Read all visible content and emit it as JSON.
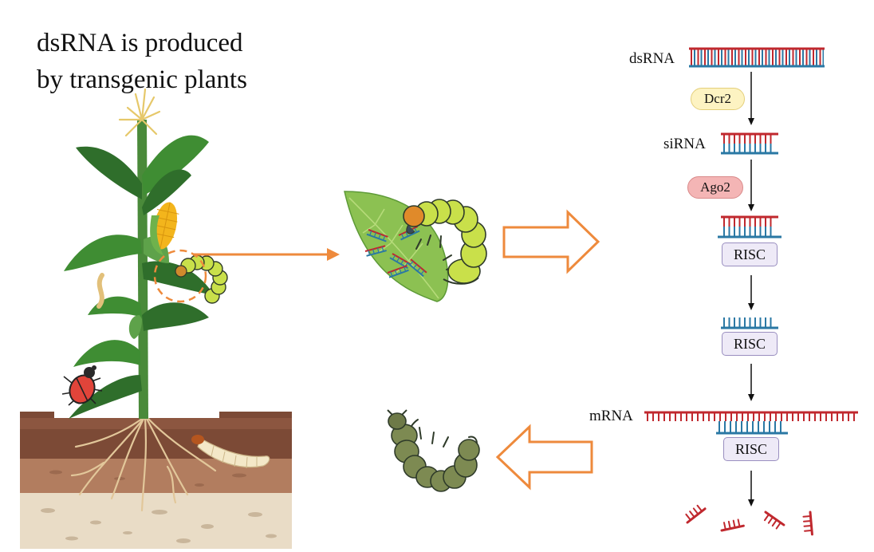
{
  "title": {
    "line1": "dsRNA is produced",
    "line2": "by transgenic plants"
  },
  "labels": {
    "dsrna": "dsRNA",
    "sirna": "siRNA",
    "mrna": "mRNA"
  },
  "enzymes": {
    "dcr2": "Dcr2",
    "ago2": "Ago2"
  },
  "complex": {
    "risc": "RISC"
  },
  "colors": {
    "arrow_orange": "#ee8a3c",
    "rna_red": "#c0282e",
    "rna_blue": "#2a78a4",
    "dcr2_fill": "#fdf3c2",
    "ago2_fill": "#f4b5b5",
    "risc_fill": "#eeeaf7",
    "leaf_green": "#8cc152",
    "caterpillar_alive": "#b9d83a",
    "caterpillar_dead": "#7d8a52"
  }
}
